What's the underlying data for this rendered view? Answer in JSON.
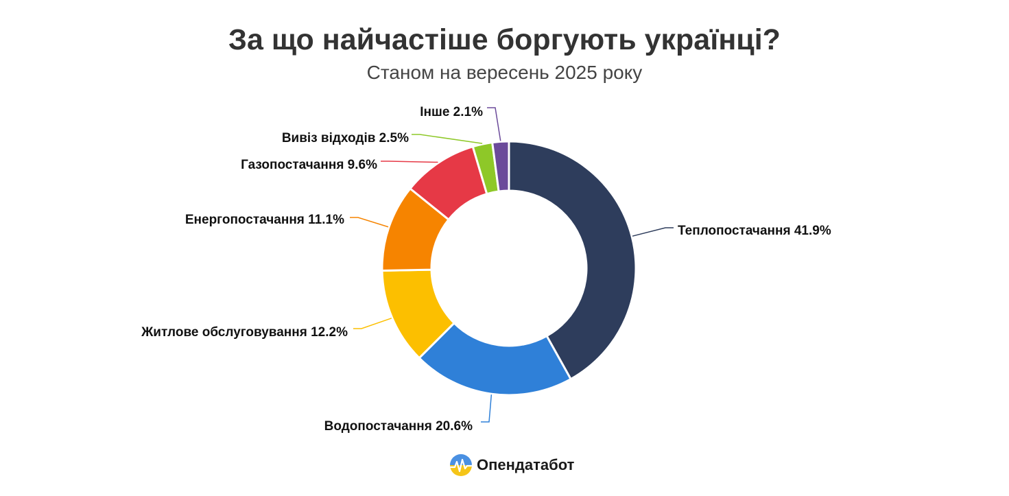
{
  "chart_data": {
    "type": "pie",
    "variant": "donut",
    "title": "За що найчастіше боргують українці?",
    "subtitle": "Станом на вересень 2025 року",
    "labels": [
      "Теплопостачання",
      "Водопостачання",
      "Житлове обслуговування",
      "Енергопостачання",
      "Газопостачання",
      "Вивіз відходів",
      "Інше"
    ],
    "values": [
      41.9,
      20.6,
      12.2,
      11.1,
      9.6,
      2.5,
      2.1
    ],
    "display_labels": [
      "Теплопостачання 41.9%",
      "Водопостачання 20.6%",
      "Житлове обслуговування 12.2%",
      "Енергопостачання 11.1%",
      "Газопостачання 9.6%",
      "Вивіз відходів 2.5%",
      "Інше 2.1%"
    ],
    "unit": "%",
    "colors": [
      "#2e3d5c",
      "#2f80d8",
      "#fcbf00",
      "#f68400",
      "#e63946",
      "#8ec828",
      "#6b4a9a"
    ]
  },
  "logo": {
    "text": "Опендатабот",
    "colors": [
      "#4a90e2",
      "#f5c518"
    ]
  }
}
